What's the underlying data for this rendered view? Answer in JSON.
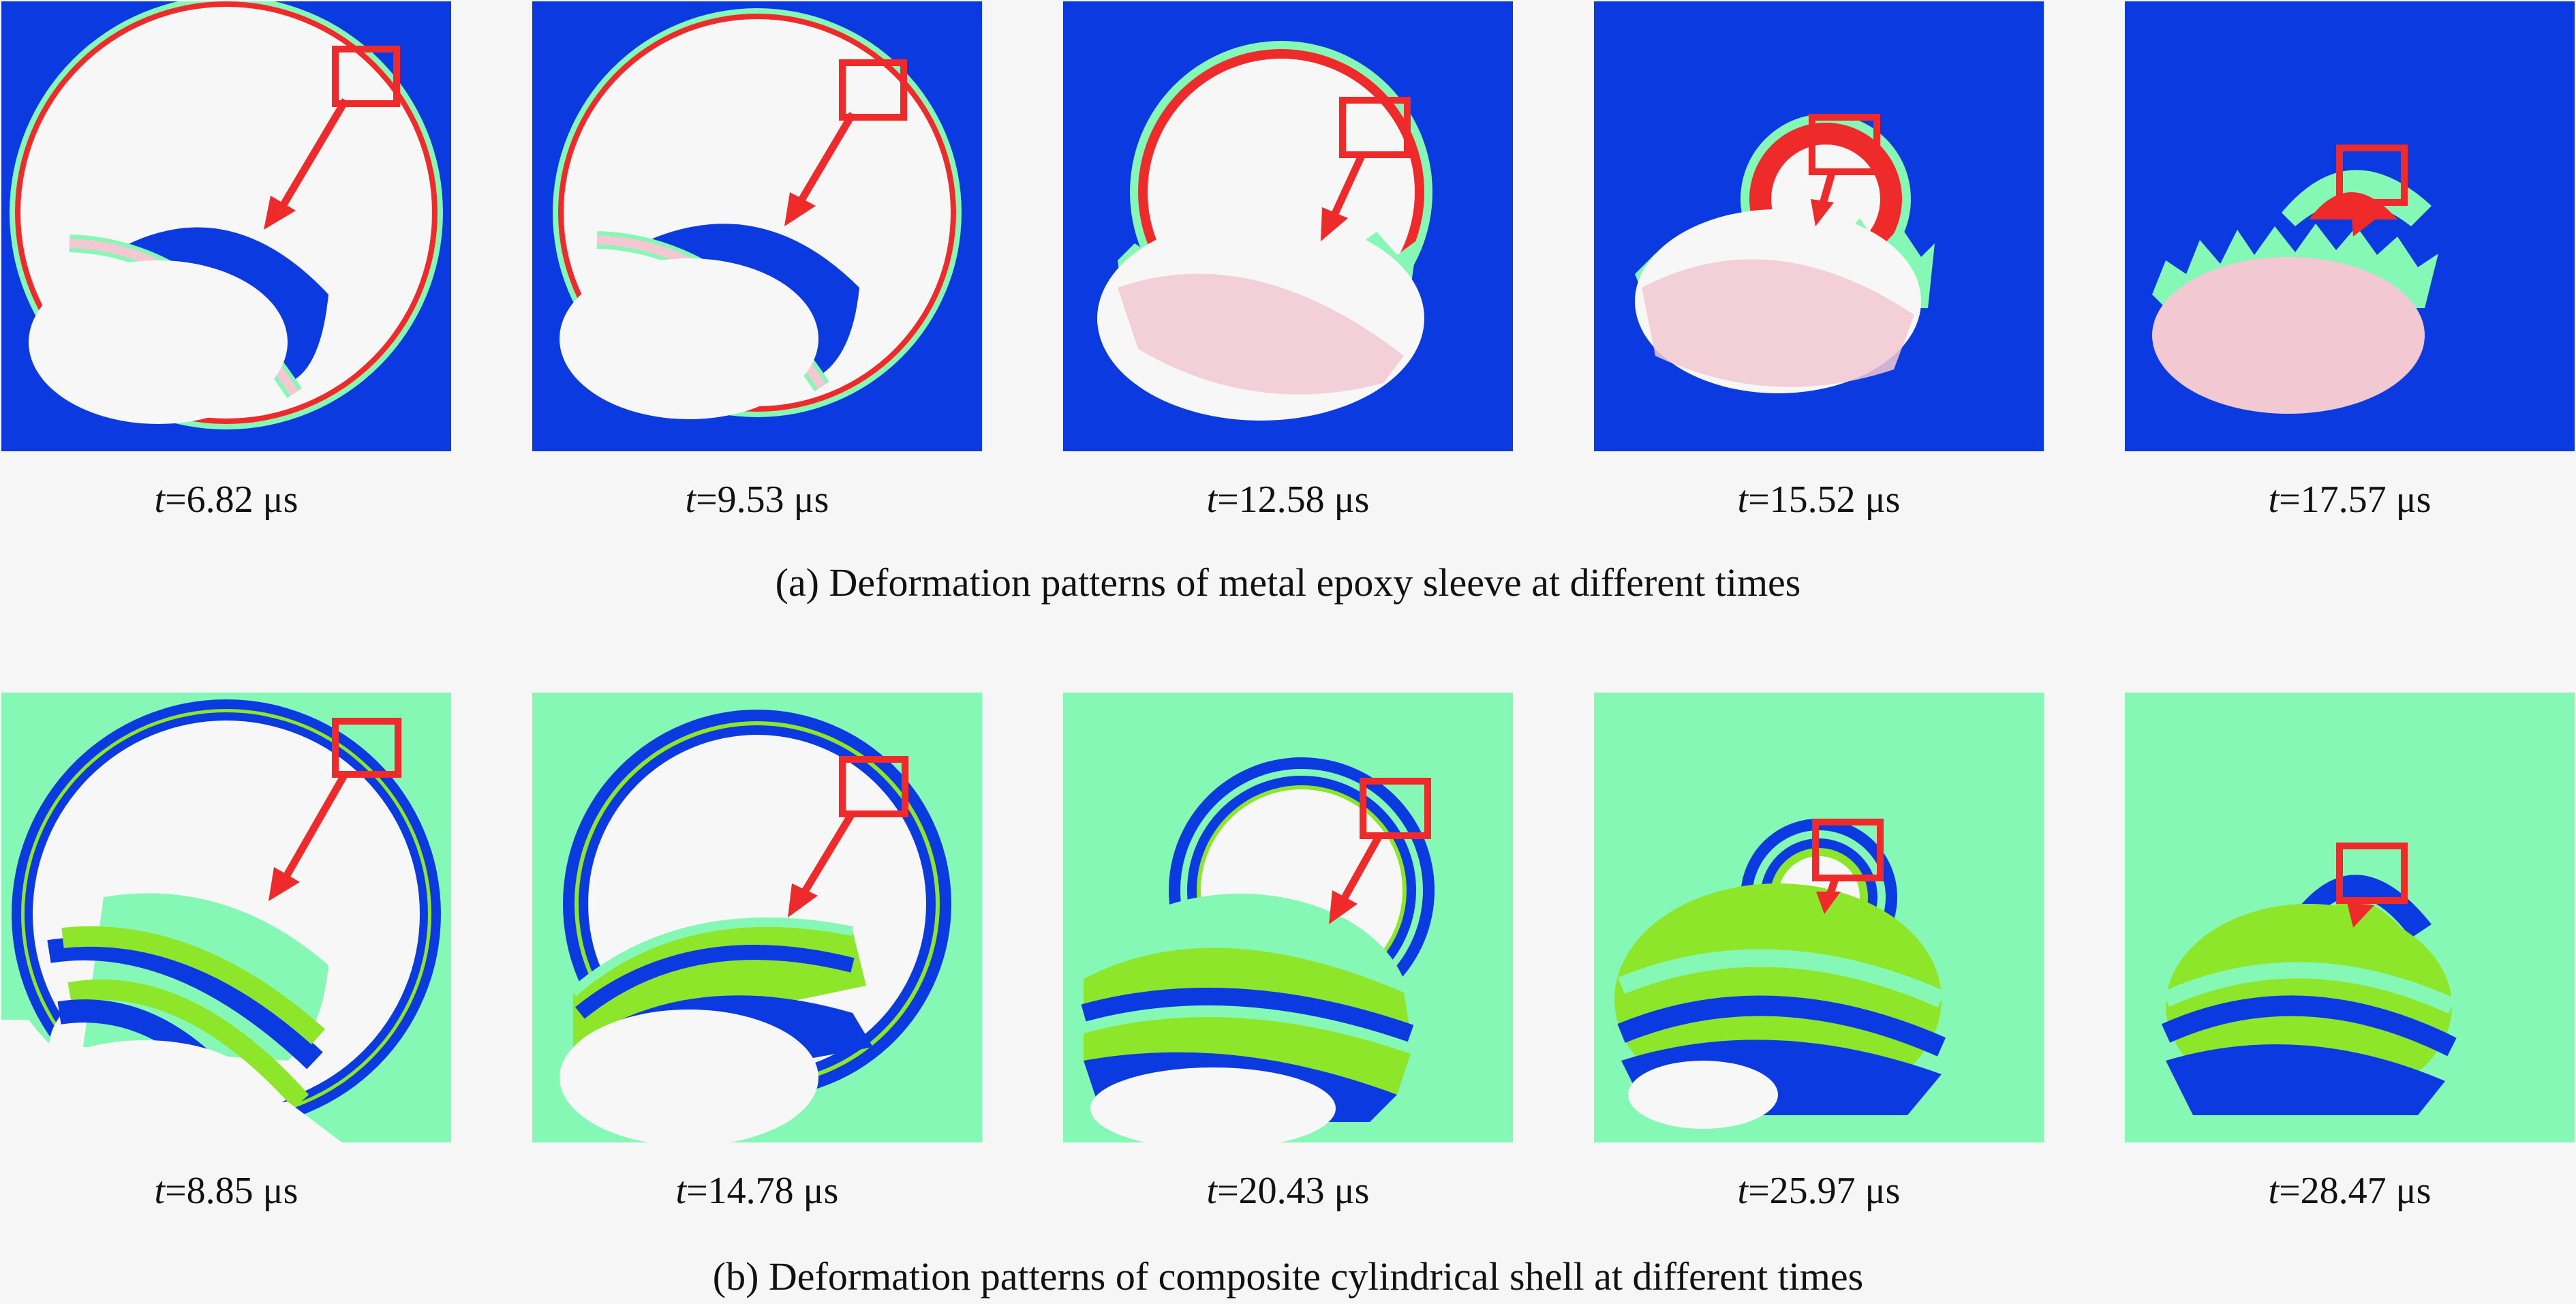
{
  "colors": {
    "metal_background": "#0a3ae0",
    "composite_background": "#86f8b6",
    "hole": "#f7f7f7",
    "highlight_box": "#ee2a2a",
    "arrow": "#ee2a2a",
    "epoxy_layer": "#f2c8d2",
    "fiber_green": "#8ee62a",
    "cyan_edge": "#86f8b6"
  },
  "row_a": {
    "caption": "(a) Deformation patterns of metal epoxy sleeve at different times",
    "panels": [
      {
        "t_symbol": "t",
        "t_value": "=6.82 μs"
      },
      {
        "t_symbol": "t",
        "t_value": "=9.53 μs"
      },
      {
        "t_symbol": "t",
        "t_value": "=12.58 μs"
      },
      {
        "t_symbol": "t",
        "t_value": "=15.52 μs"
      },
      {
        "t_symbol": "t",
        "t_value": "=17.57 μs"
      }
    ]
  },
  "row_b": {
    "caption": "(b) Deformation patterns of composite cylindrical shell at different times",
    "panels": [
      {
        "t_symbol": "t",
        "t_value": "=8.85 μs"
      },
      {
        "t_symbol": "t",
        "t_value": "=14.78 μs"
      },
      {
        "t_symbol": "t",
        "t_value": "=20.43 μs"
      },
      {
        "t_symbol": "t",
        "t_value": "=25.97 μs"
      },
      {
        "t_symbol": "t",
        "t_value": "=28.47 μs"
      }
    ]
  }
}
